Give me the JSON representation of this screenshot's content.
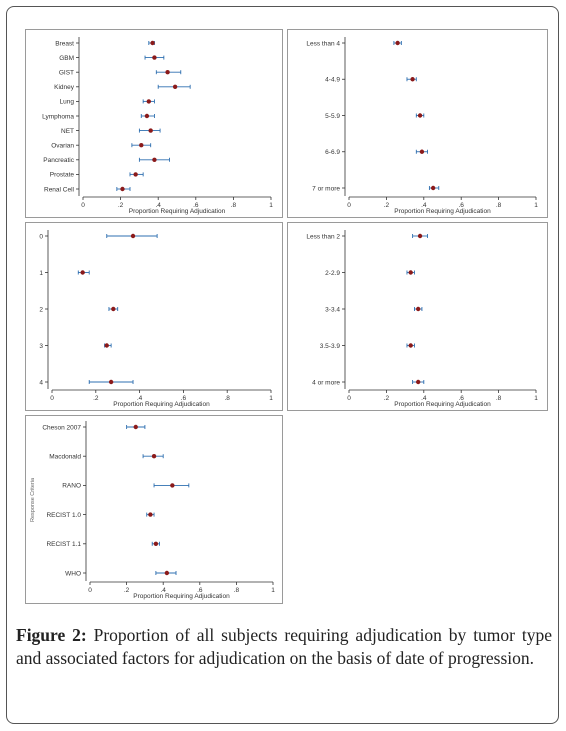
{
  "caption": {
    "label": "Figure 2:",
    "text": " Proportion of all subjects requiring adjudication by tumor type and associated factors for adjudication on the basis of date of progression."
  },
  "colors": {
    "point": "#8b1a1a",
    "ci": "#2e6fb0",
    "axis": "#333333"
  },
  "chart_data": [
    {
      "type": "scatter",
      "xlabel": "Proportion Requiring Adjudication",
      "xticks": [
        "0",
        ".2",
        ".4",
        ".6",
        ".8",
        "1"
      ],
      "xlim": [
        0,
        1
      ],
      "categories": [
        "Breast",
        "GBM",
        "GIST",
        "Kidney",
        "Lung",
        "Lymphoma",
        "NET",
        "Ovarian",
        "Pancreatic",
        "Prostate",
        "Renal Cell"
      ],
      "estimate": [
        0.37,
        0.38,
        0.45,
        0.49,
        0.35,
        0.34,
        0.36,
        0.31,
        0.38,
        0.28,
        0.21
      ],
      "ci_low": [
        0.35,
        0.33,
        0.39,
        0.4,
        0.32,
        0.31,
        0.3,
        0.26,
        0.3,
        0.25,
        0.18
      ],
      "ci_high": [
        0.38,
        0.43,
        0.52,
        0.57,
        0.38,
        0.38,
        0.41,
        0.36,
        0.46,
        0.32,
        0.25
      ]
    },
    {
      "type": "scatter",
      "xlabel": "Proportion Requiring Adjudication",
      "xticks": [
        "0",
        ".2",
        ".4",
        ".6",
        ".8",
        "1"
      ],
      "xlim": [
        0,
        1
      ],
      "categories": [
        "Less than 4",
        "4-4.9",
        "5-5.9",
        "6-6.9",
        "7 or more"
      ],
      "estimate": [
        0.26,
        0.34,
        0.38,
        0.39,
        0.45
      ],
      "ci_low": [
        0.24,
        0.31,
        0.36,
        0.36,
        0.43
      ],
      "ci_high": [
        0.28,
        0.36,
        0.4,
        0.42,
        0.48
      ]
    },
    {
      "type": "scatter",
      "xlabel": "Proportion Requiring Adjudication",
      "xticks": [
        "0",
        ".2",
        ".4",
        ".6",
        ".8",
        "1"
      ],
      "xlim": [
        0,
        1
      ],
      "categories": [
        "0",
        "1",
        "2",
        "3",
        "4"
      ],
      "estimate": [
        0.37,
        0.14,
        0.28,
        0.25,
        0.27
      ],
      "ci_low": [
        0.25,
        0.12,
        0.26,
        0.24,
        0.17
      ],
      "ci_high": [
        0.48,
        0.17,
        0.3,
        0.27,
        0.37
      ]
    },
    {
      "type": "scatter",
      "xlabel": "Proportion Requiring Adjudication",
      "xticks": [
        "0",
        ".2",
        ".4",
        ".6",
        ".8",
        "1"
      ],
      "xlim": [
        0,
        1
      ],
      "categories": [
        "Less than 2",
        "2-2.9",
        "3-3.4",
        "3.5-3.9",
        "4 or more"
      ],
      "estimate": [
        0.38,
        0.33,
        0.37,
        0.33,
        0.37
      ],
      "ci_low": [
        0.34,
        0.31,
        0.35,
        0.31,
        0.34
      ],
      "ci_high": [
        0.42,
        0.35,
        0.39,
        0.35,
        0.4
      ]
    },
    {
      "type": "scatter",
      "xlabel": "Proportion Requiring Adjudication",
      "ylabel": "Response Criteria",
      "xticks": [
        "0",
        ".2",
        ".4",
        ".6",
        ".8",
        "1"
      ],
      "xlim": [
        0,
        1
      ],
      "categories": [
        "Cheson 2007",
        "Macdonald",
        "RANO",
        "RECIST 1.0",
        "RECIST 1.1",
        "WHO"
      ],
      "estimate": [
        0.25,
        0.35,
        0.45,
        0.33,
        0.36,
        0.42
      ],
      "ci_low": [
        0.2,
        0.29,
        0.35,
        0.31,
        0.34,
        0.36
      ],
      "ci_high": [
        0.3,
        0.4,
        0.54,
        0.35,
        0.38,
        0.47
      ]
    }
  ]
}
